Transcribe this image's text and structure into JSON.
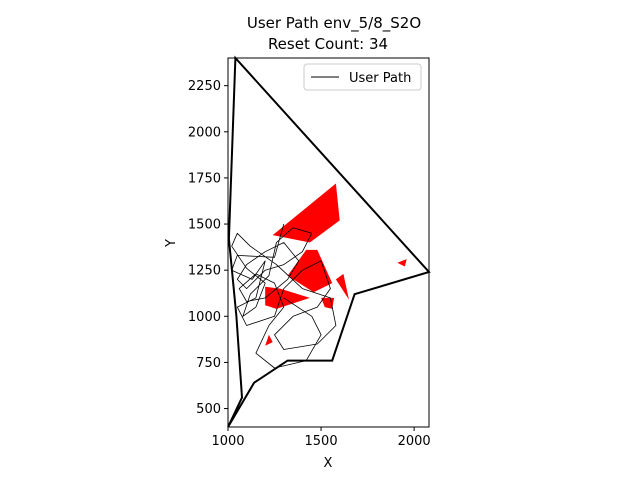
{
  "chart_data": {
    "type": "line",
    "title": "User Path env_5/8_S2O",
    "subtitle": "Reset Count: 34",
    "xlabel": "X",
    "ylabel": "Y",
    "xlim": [
      1000,
      2080
    ],
    "ylim": [
      400,
      2400
    ],
    "xticks": [
      1000,
      1500,
      2000
    ],
    "yticks": [
      500,
      750,
      1000,
      1250,
      1500,
      1750,
      2000,
      2250
    ],
    "grid": false,
    "legend": {
      "position": "top-right",
      "entries": [
        "User Path"
      ]
    },
    "colors": {
      "boundary": "#000000",
      "obstacle": "#ff0000",
      "path": "#000000"
    },
    "boundary": [
      [
        1000,
        400
      ],
      [
        1075,
        560
      ],
      [
        1045,
        1000
      ],
      [
        1005,
        1420
      ],
      [
        1040,
        2400
      ],
      [
        2080,
        1240
      ],
      [
        1680,
        1120
      ],
      [
        1560,
        760
      ],
      [
        1320,
        760
      ],
      [
        1140,
        640
      ],
      [
        1000,
        400
      ]
    ],
    "obstacles": [
      [
        [
          1240,
          1440
        ],
        [
          1580,
          1720
        ],
        [
          1600,
          1520
        ],
        [
          1440,
          1400
        ]
      ],
      [
        [
          1320,
          1220
        ],
        [
          1420,
          1360
        ],
        [
          1480,
          1360
        ],
        [
          1560,
          1180
        ],
        [
          1460,
          1130
        ]
      ],
      [
        [
          1200,
          1160
        ],
        [
          1280,
          1150
        ],
        [
          1440,
          1100
        ],
        [
          1260,
          1040
        ],
        [
          1200,
          1060
        ]
      ],
      [
        [
          1580,
          1200
        ],
        [
          1620,
          1230
        ],
        [
          1650,
          1090
        ]
      ],
      [
        [
          1520,
          1050
        ],
        [
          1560,
          1040
        ],
        [
          1570,
          1100
        ],
        [
          1500,
          1100
        ]
      ],
      [
        [
          1910,
          1290
        ],
        [
          1960,
          1310
        ],
        [
          1950,
          1270
        ]
      ],
      [
        [
          1200,
          840
        ],
        [
          1220,
          900
        ],
        [
          1240,
          860
        ]
      ]
    ],
    "series": [
      {
        "name": "User Path",
        "points": [
          [
            1300,
            1500
          ],
          [
            1250,
            1320
          ],
          [
            1050,
            1330
          ],
          [
            1020,
            1250
          ],
          [
            1130,
            1200
          ],
          [
            1200,
            1300
          ],
          [
            1150,
            1100
          ],
          [
            1050,
            1050
          ],
          [
            1100,
            950
          ],
          [
            1250,
            1000
          ],
          [
            1300,
            1150
          ],
          [
            1400,
            1250
          ],
          [
            1500,
            1300
          ],
          [
            1550,
            1150
          ],
          [
            1480,
            1050
          ],
          [
            1350,
            1000
          ],
          [
            1250,
            900
          ],
          [
            1300,
            820
          ],
          [
            1480,
            850
          ],
          [
            1580,
            950
          ],
          [
            1550,
            1100
          ],
          [
            1400,
            1150
          ],
          [
            1260,
            1280
          ],
          [
            1120,
            1380
          ],
          [
            1050,
            1450
          ],
          [
            1020,
            1380
          ],
          [
            1100,
            1260
          ],
          [
            1200,
            1180
          ],
          [
            1150,
            1050
          ],
          [
            1080,
            1000
          ],
          [
            1120,
            1120
          ],
          [
            1220,
            1220
          ],
          [
            1260,
            1400
          ],
          [
            1350,
            1480
          ],
          [
            1450,
            1450
          ],
          [
            1400,
            1350
          ],
          [
            1300,
            1280
          ],
          [
            1200,
            1250
          ],
          [
            1100,
            1150
          ],
          [
            1050,
            1200
          ],
          [
            1100,
            1280
          ],
          [
            1200,
            1350
          ],
          [
            1300,
            1400
          ],
          [
            1380,
            1300
          ],
          [
            1320,
            1200
          ],
          [
            1200,
            1100
          ],
          [
            1100,
            1080
          ],
          [
            1060,
            1150
          ],
          [
            1150,
            1230
          ],
          [
            1250,
            1180
          ],
          [
            1300,
            1050
          ],
          [
            1220,
            950
          ],
          [
            1150,
            800
          ],
          [
            1250,
            720
          ],
          [
            1420,
            760
          ],
          [
            1500,
            900
          ],
          [
            1450,
            1000
          ],
          [
            1300,
            1100
          ]
        ]
      }
    ]
  }
}
